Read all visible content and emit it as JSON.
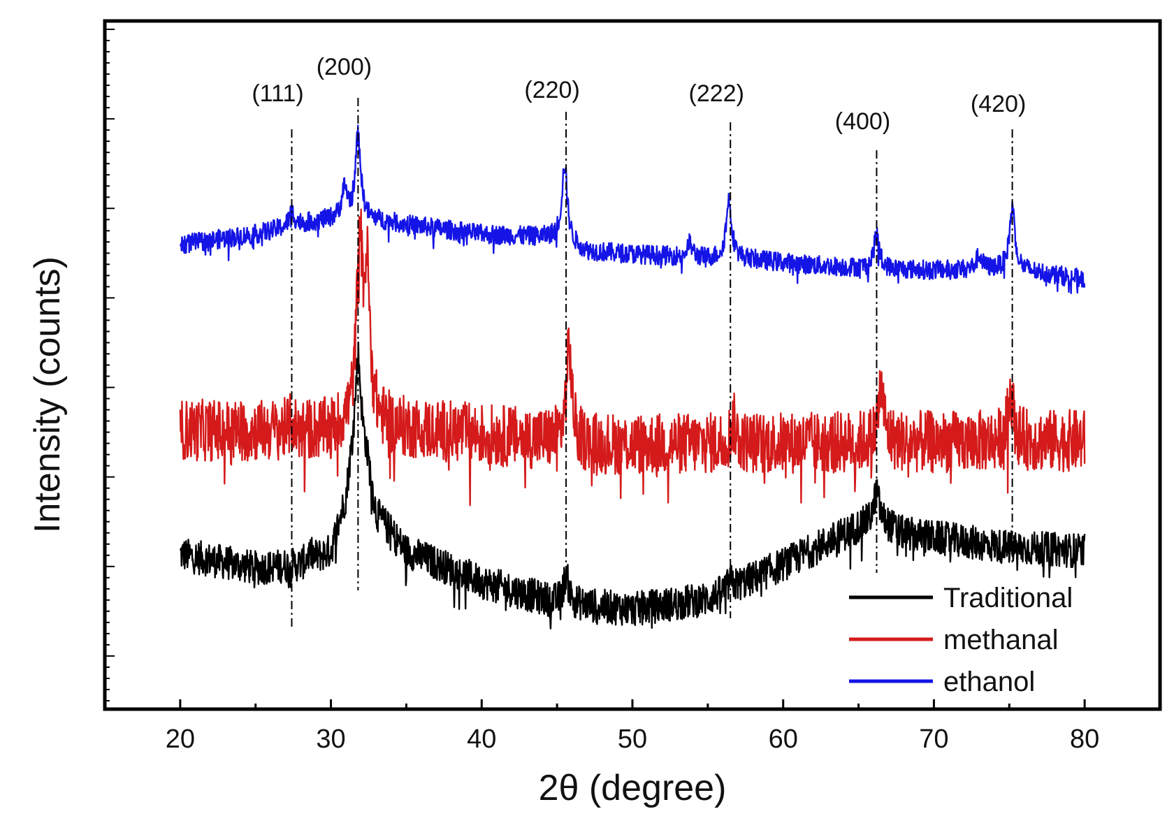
{
  "chart_data": {
    "type": "line",
    "title": "",
    "xlabel": "2θ (degree)",
    "ylabel": "Intensity (counts)",
    "xlim": [
      15,
      85
    ],
    "ylim": [
      0,
      1
    ],
    "x_ticks": [
      20,
      30,
      40,
      50,
      60,
      70,
      80
    ],
    "x_tick_labels": [
      "20",
      "30",
      "40",
      "50",
      "60",
      "70",
      "80"
    ],
    "grid": false,
    "legend_position": "bottom-right",
    "peak_labels": [
      {
        "label": "(111)",
        "x": 27.4
      },
      {
        "label": "(200)",
        "x": 31.8
      },
      {
        "label": "(220)",
        "x": 45.6
      },
      {
        "label": "(222)",
        "x": 56.5
      },
      {
        "label": "(400)",
        "x": 66.2
      },
      {
        "label": "(420)",
        "x": 75.2
      }
    ],
    "series": [
      {
        "name": "Traditional",
        "color": "#000000",
        "noise": 0.025,
        "keypoints": [
          [
            20,
            0.225
          ],
          [
            25,
            0.205
          ],
          [
            28,
            0.21
          ],
          [
            30,
            0.23
          ],
          [
            31,
            0.31
          ],
          [
            31.5,
            0.41
          ],
          [
            31.8,
            0.52
          ],
          [
            32.1,
            0.42
          ],
          [
            33,
            0.285
          ],
          [
            35,
            0.23
          ],
          [
            40,
            0.185
          ],
          [
            45,
            0.155
          ],
          [
            50,
            0.145
          ],
          [
            55,
            0.16
          ],
          [
            60,
            0.21
          ],
          [
            65,
            0.265
          ],
          [
            66.2,
            0.275
          ],
          [
            68,
            0.255
          ],
          [
            75,
            0.235
          ],
          [
            80,
            0.23
          ]
        ],
        "peaks": [
          [
            31.8,
            0.0
          ],
          [
            45.6,
            0.04
          ],
          [
            66.2,
            0.04
          ],
          [
            56.5,
            0.01
          ],
          [
            28.6,
            0.01
          ]
        ]
      },
      {
        "name": "methanal",
        "color": "#d41a1a",
        "noise": 0.045,
        "keypoints": [
          [
            20,
            0.405
          ],
          [
            30,
            0.405
          ],
          [
            31.5,
            0.42
          ],
          [
            32,
            0.425
          ],
          [
            34,
            0.41
          ],
          [
            45,
            0.39
          ],
          [
            46,
            0.385
          ],
          [
            50,
            0.385
          ],
          [
            80,
            0.39
          ]
        ],
        "peaks": [
          [
            31.9,
            0.26
          ],
          [
            32.4,
            0.2
          ],
          [
            45.8,
            0.14
          ],
          [
            66.5,
            0.08
          ],
          [
            75.1,
            0.07
          ],
          [
            56.7,
            0.03
          ],
          [
            27.4,
            0.01
          ]
        ]
      },
      {
        "name": "ethanol",
        "color": "#1414e6",
        "noise": 0.014,
        "keypoints": [
          [
            20,
            0.675
          ],
          [
            25,
            0.69
          ],
          [
            28,
            0.705
          ],
          [
            31,
            0.715
          ],
          [
            33,
            0.71
          ],
          [
            40,
            0.69
          ],
          [
            45,
            0.685
          ],
          [
            47,
            0.665
          ],
          [
            55,
            0.655
          ],
          [
            57,
            0.655
          ],
          [
            62,
            0.645
          ],
          [
            66,
            0.64
          ],
          [
            70,
            0.638
          ],
          [
            75,
            0.64
          ],
          [
            80,
            0.625
          ]
        ],
        "peaks": [
          [
            31.8,
            0.12
          ],
          [
            30.9,
            0.04
          ],
          [
            45.5,
            0.11
          ],
          [
            56.4,
            0.085
          ],
          [
            66.2,
            0.05
          ],
          [
            75.2,
            0.09
          ],
          [
            53.8,
            0.02
          ],
          [
            73,
            0.02
          ],
          [
            27.4,
            0.02
          ]
        ]
      }
    ]
  }
}
